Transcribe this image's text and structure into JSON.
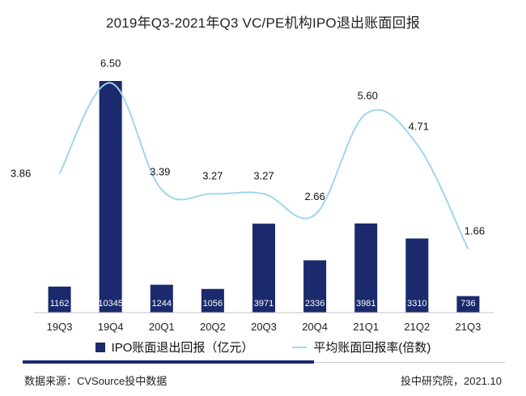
{
  "chart_data": {
    "type": "bar",
    "title": "2019年Q3-2021年Q3 VC/PE机构IPO退出账面回报",
    "categories": [
      "19Q3",
      "19Q4",
      "20Q1",
      "20Q2",
      "20Q3",
      "20Q4",
      "21Q1",
      "21Q2",
      "21Q3"
    ],
    "series": [
      {
        "name": "IPO账面退出回报（亿元）",
        "type": "bar",
        "values": [
          1162,
          10345,
          1244,
          1056,
          3971,
          2336,
          3981,
          3310,
          736
        ],
        "labels": [
          "1162",
          "10345",
          "1244",
          "1056",
          "3971",
          "2336",
          "3981",
          "3310",
          "736"
        ],
        "color": "#1a2a6c"
      },
      {
        "name": "平均账面回报率(倍数)",
        "type": "line",
        "values": [
          3.86,
          6.5,
          3.39,
          3.27,
          3.27,
          2.66,
          5.6,
          4.71,
          1.66
        ],
        "labels": [
          "3.86",
          "6.50",
          "3.39",
          "3.27",
          "3.27",
          "2.66",
          "5.60",
          "4.71",
          "1.66"
        ],
        "color": "#9fd6ee"
      }
    ],
    "y_bar_range": [
      0,
      11000
    ],
    "y_line_range": [
      0,
      7.5
    ],
    "grid": false,
    "legend_position": "bottom"
  },
  "footer": {
    "source": "数据来源：CVSource投中数据",
    "credit": "投中研究院，2021.10"
  }
}
